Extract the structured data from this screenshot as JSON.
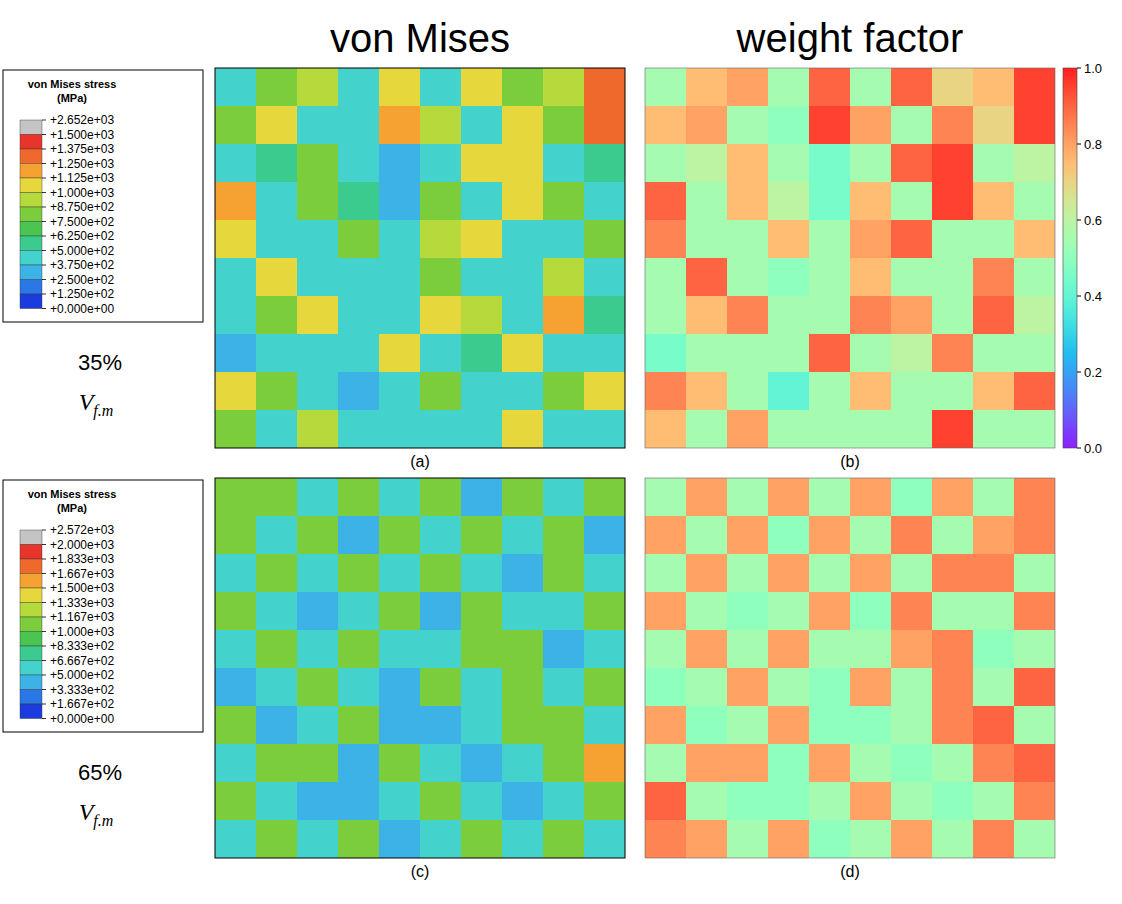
{
  "column_titles": [
    "von Mises",
    "weight factor"
  ],
  "rows": [
    {
      "fraction": {
        "value": 35,
        "label": "35%"
      },
      "symbol": {
        "text": "V",
        "subscript": "f.m"
      }
    },
    {
      "fraction": {
        "value": 65,
        "label": "65%"
      },
      "symbol": {
        "text": "V",
        "subscript": "f.m"
      }
    }
  ],
  "colorbar": {
    "range": [
      0,
      1
    ],
    "ticks": [
      {
        "value": 0,
        "label": "0.0"
      },
      0.2,
      0.4,
      0.6,
      0.8,
      {
        "value": 1,
        "label": "1.0"
      }
    ]
  },
  "chart_data": [
    {
      "type": "heatmap",
      "panel_label": "(a)",
      "tick_labels": false,
      "colorbar": {
        "title": [
          "von Mises stress",
          "(MPa)"
        ],
        "range": [
          0,
          2652
        ],
        "ticks": [
          {
            "value": 2652,
            "label": "+2.652e+03"
          },
          {
            "value": 1500,
            "label": "+1.500e+03"
          },
          {
            "value": 1375,
            "label": "+1.375e+03"
          },
          {
            "value": 1250,
            "label": "+1.250e+03"
          },
          {
            "value": 1125,
            "label": "+1.125e+03"
          },
          {
            "value": 1000,
            "label": "+1.000e+03"
          },
          {
            "value": 875,
            "label": "+8.750e+02"
          },
          {
            "value": 750,
            "label": "+7.500e+02"
          },
          {
            "value": 625,
            "label": "+6.250e+02"
          },
          {
            "value": 500,
            "label": "+5.000e+02"
          },
          {
            "value": 375,
            "label": "+3.750e+02"
          },
          {
            "value": 250,
            "label": "+2.500e+02"
          },
          {
            "value": 125,
            "label": "+1.250e+02"
          },
          {
            "value": 0,
            "label": "+0.000e+00"
          }
        ],
        "colors": [
          "#c4c4c4",
          "#e8342a",
          "#f0692c",
          "#f5a232",
          "#e6d83c",
          "#b6da3c",
          "#7ccd3c",
          "#4cc452",
          "#3ccb8e",
          "#44d2cc",
          "#3cb2e6",
          "#2a78e6",
          "#1a3cdc"
        ]
      },
      "cells": [
        [
          450,
          800,
          900,
          450,
          1100,
          450,
          1000,
          800,
          900,
          1250
        ],
        [
          800,
          1000,
          450,
          400,
          1200,
          900,
          450,
          1000,
          800,
          1300
        ],
        [
          450,
          500,
          800,
          450,
          300,
          450,
          1000,
          1100,
          450,
          500
        ],
        [
          1200,
          450,
          800,
          500,
          300,
          800,
          450,
          1000,
          800,
          450
        ],
        [
          1000,
          450,
          450,
          800,
          450,
          900,
          1100,
          450,
          450,
          800
        ],
        [
          450,
          1100,
          450,
          400,
          450,
          800,
          450,
          450,
          900,
          450
        ],
        [
          450,
          800,
          1000,
          450,
          450,
          1000,
          900,
          450,
          1200,
          500
        ],
        [
          300,
          450,
          450,
          450,
          1100,
          450,
          500,
          1000,
          450,
          450
        ],
        [
          1000,
          800,
          450,
          350,
          450,
          800,
          450,
          450,
          800,
          1000
        ],
        [
          800,
          450,
          900,
          450,
          450,
          450,
          450,
          1000,
          450,
          450
        ]
      ]
    },
    {
      "type": "heatmap",
      "panel_label": "(b)",
      "tick_labels": false,
      "cells": [
        [
          0.55,
          0.75,
          0.8,
          0.55,
          0.9,
          0.55,
          0.9,
          0.7,
          0.75,
          0.95
        ],
        [
          0.75,
          0.8,
          0.55,
          0.5,
          0.95,
          0.8,
          0.55,
          0.85,
          0.7,
          0.95
        ],
        [
          0.55,
          0.6,
          0.75,
          0.55,
          0.45,
          0.55,
          0.9,
          0.95,
          0.55,
          0.6
        ],
        [
          0.9,
          0.55,
          0.75,
          0.6,
          0.45,
          0.75,
          0.55,
          0.95,
          0.75,
          0.55
        ],
        [
          0.85,
          0.55,
          0.55,
          0.75,
          0.55,
          0.8,
          0.9,
          0.55,
          0.55,
          0.75
        ],
        [
          0.55,
          0.9,
          0.55,
          0.5,
          0.55,
          0.75,
          0.55,
          0.55,
          0.85,
          0.55
        ],
        [
          0.55,
          0.75,
          0.85,
          0.55,
          0.55,
          0.85,
          0.8,
          0.55,
          0.9,
          0.6
        ],
        [
          0.45,
          0.55,
          0.55,
          0.55,
          0.9,
          0.55,
          0.6,
          0.85,
          0.55,
          0.55
        ],
        [
          0.85,
          0.75,
          0.55,
          0.4,
          0.55,
          0.75,
          0.55,
          0.55,
          0.75,
          0.9
        ],
        [
          0.75,
          0.55,
          0.8,
          0.55,
          0.55,
          0.55,
          0.55,
          0.95,
          0.55,
          0.55
        ]
      ]
    },
    {
      "type": "heatmap",
      "panel_label": "(c)",
      "tick_labels": false,
      "colorbar": {
        "title": [
          "von Mises stress",
          "(MPa)"
        ],
        "range": [
          0,
          2572
        ],
        "ticks": [
          {
            "value": 2572,
            "label": "+2.572e+03"
          },
          {
            "value": 2000,
            "label": "+2.000e+03"
          },
          {
            "value": 1833,
            "label": "+1.833e+03"
          },
          {
            "value": 1667,
            "label": "+1.667e+03"
          },
          {
            "value": 1500,
            "label": "+1.500e+03"
          },
          {
            "value": 1333,
            "label": "+1.333e+03"
          },
          {
            "value": 1167,
            "label": "+1.167e+03"
          },
          {
            "value": 1000,
            "label": "+1.000e+03"
          },
          {
            "value": 833.3,
            "label": "+8.333e+02"
          },
          {
            "value": 666.7,
            "label": "+6.667e+02"
          },
          {
            "value": 500,
            "label": "+5.000e+02"
          },
          {
            "value": 333.3,
            "label": "+3.333e+02"
          },
          {
            "value": 166.7,
            "label": "+1.667e+02"
          },
          {
            "value": 0,
            "label": "+0.000e+00"
          }
        ],
        "colors": [
          "#c4c4c4",
          "#e8342a",
          "#f0692c",
          "#f5a232",
          "#e6d83c",
          "#b6da3c",
          "#7ccd3c",
          "#4cc452",
          "#3ccb8e",
          "#44d2cc",
          "#3cb2e6",
          "#2a78e6",
          "#1a3cdc"
        ]
      },
      "cells": [
        [
          1000,
          1000,
          550,
          1000,
          550,
          1000,
          350,
          1000,
          550,
          1000
        ],
        [
          1000,
          550,
          1000,
          350,
          1000,
          550,
          1000,
          550,
          1000,
          350
        ],
        [
          550,
          1000,
          550,
          1000,
          550,
          1000,
          550,
          350,
          1000,
          550
        ],
        [
          1000,
          550,
          350,
          550,
          1000,
          350,
          1000,
          550,
          550,
          1000
        ],
        [
          550,
          1000,
          550,
          1000,
          550,
          550,
          1000,
          1000,
          350,
          550
        ],
        [
          350,
          550,
          1000,
          550,
          350,
          1000,
          550,
          1000,
          550,
          1000
        ],
        [
          1000,
          350,
          550,
          1000,
          350,
          350,
          550,
          1000,
          1000,
          550
        ],
        [
          550,
          1000,
          1000,
          350,
          1000,
          550,
          350,
          550,
          1000,
          1600
        ],
        [
          1000,
          550,
          350,
          350,
          550,
          1000,
          550,
          350,
          550,
          1000
        ],
        [
          550,
          1000,
          550,
          1000,
          350,
          550,
          1000,
          550,
          1000,
          550
        ]
      ]
    },
    {
      "type": "heatmap",
      "panel_label": "(d)",
      "tick_labels": false,
      "cells": [
        [
          0.55,
          0.8,
          0.55,
          0.8,
          0.55,
          0.8,
          0.5,
          0.8,
          0.55,
          0.85
        ],
        [
          0.8,
          0.55,
          0.8,
          0.5,
          0.8,
          0.55,
          0.85,
          0.55,
          0.8,
          0.85
        ],
        [
          0.55,
          0.8,
          0.55,
          0.8,
          0.55,
          0.8,
          0.55,
          0.85,
          0.85,
          0.55
        ],
        [
          0.8,
          0.55,
          0.5,
          0.55,
          0.8,
          0.5,
          0.85,
          0.55,
          0.55,
          0.85
        ],
        [
          0.55,
          0.8,
          0.55,
          0.8,
          0.55,
          0.55,
          0.8,
          0.85,
          0.5,
          0.55
        ],
        [
          0.5,
          0.55,
          0.8,
          0.55,
          0.5,
          0.8,
          0.55,
          0.85,
          0.55,
          0.9
        ],
        [
          0.8,
          0.5,
          0.55,
          0.8,
          0.5,
          0.5,
          0.55,
          0.85,
          0.9,
          0.55
        ],
        [
          0.55,
          0.8,
          0.8,
          0.5,
          0.8,
          0.55,
          0.5,
          0.55,
          0.85,
          0.9
        ],
        [
          0.9,
          0.55,
          0.5,
          0.5,
          0.55,
          0.8,
          0.55,
          0.5,
          0.55,
          0.85
        ],
        [
          0.85,
          0.8,
          0.55,
          0.8,
          0.5,
          0.55,
          0.8,
          0.55,
          0.85,
          0.55
        ]
      ]
    }
  ]
}
